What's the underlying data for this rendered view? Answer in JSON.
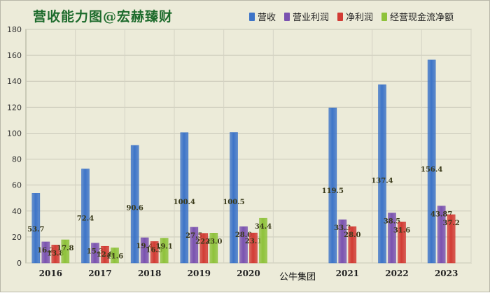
{
  "title": "营收能力图@宏赫臻财",
  "company_label": "公牛集团",
  "legend": [
    {
      "name": "营收",
      "color": "#3d74c8"
    },
    {
      "name": "营业利润",
      "color": "#7a52b0"
    },
    {
      "name": "净利润",
      "color": "#d23b34"
    },
    {
      "name": "经营现金流净额",
      "color": "#8ec23a"
    }
  ],
  "chart_data": {
    "type": "bar",
    "title": "营收能力图@宏赫臻财",
    "categories": [
      "2016",
      "2017",
      "2018",
      "2019",
      "2020",
      "2021",
      "2022",
      "2023"
    ],
    "series": [
      {
        "name": "营收",
        "color": "#3d74c8",
        "values": [
          53.7,
          72.4,
          90.6,
          100.4,
          100.5,
          119.5,
          137.4,
          156.4
        ],
        "labels": [
          "53.7",
          "72.4",
          "90.6",
          "100.4",
          "100.5",
          "119.5",
          "137.4",
          "156.4"
        ]
      },
      {
        "name": "营业利润",
        "color": "#7a52b0",
        "values": [
          16.2,
          15.3,
          19.4,
          27.5,
          28.0,
          33.3,
          38.5,
          43.87
        ],
        "labels": [
          "16.2",
          "15.3",
          "19.4",
          "27.5",
          "28.0",
          "33.3",
          "38.5",
          "43.87"
        ]
      },
      {
        "name": "净利润",
        "color": "#d23b34",
        "values": [
          13.8,
          12.8,
          16.5,
          22.8,
          23.1,
          28.0,
          31.6,
          37.2
        ],
        "labels": [
          "13.8",
          "12.8",
          "16.5",
          "22.8",
          "23.1",
          "28.0",
          "31.6",
          "37.2"
        ]
      },
      {
        "name": "经营现金流净额",
        "color": "#8ec23a",
        "values": [
          17.8,
          11.6,
          19.1,
          23.0,
          34.4,
          null,
          null,
          null
        ],
        "labels": [
          "17.8",
          "11.6",
          "19.1",
          "23.0",
          "34.4",
          "",
          "",
          ""
        ]
      }
    ],
    "ylim": [
      0,
      180
    ],
    "yticks": [
      0,
      20,
      40,
      60,
      80,
      100,
      120,
      140,
      160,
      180
    ],
    "grid": true,
    "legend_position": "top-right"
  }
}
